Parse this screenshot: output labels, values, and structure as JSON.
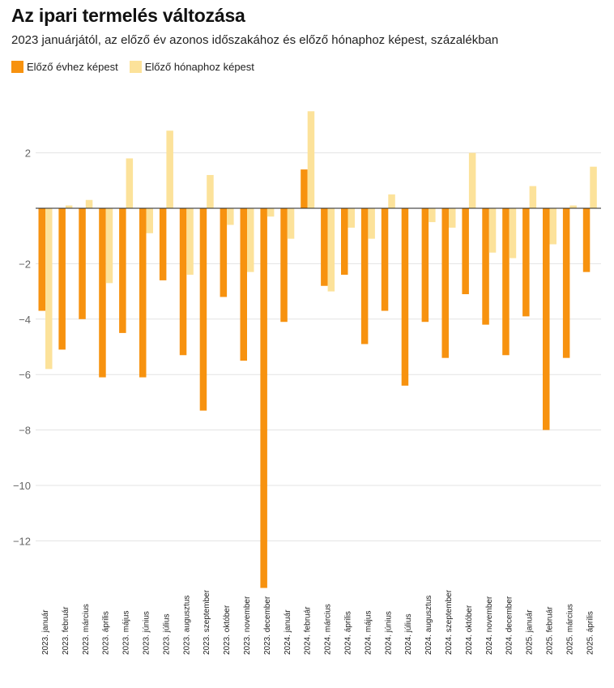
{
  "chart_data": {
    "type": "bar",
    "title": "Az ipari termelés változása",
    "subtitle": "2023 januárjától, az előző év azonos időszakához és előző hónaphoz képest, százalékban",
    "xlabel": "",
    "ylabel": "",
    "ylim": [
      -14,
      3.6
    ],
    "yticks": [
      2,
      0,
      -2,
      -4,
      -6,
      -8,
      -10,
      -12
    ],
    "ytick_labels": [
      "2",
      "",
      "−2",
      "−4",
      "−6",
      "−8",
      "−10",
      "−12"
    ],
    "grid": true,
    "legend_position": "top-left",
    "categories": [
      "2023. január",
      "2023. február",
      "2023. március",
      "2023. április",
      "2023. május",
      "2023. június",
      "2023. július",
      "2023. augusztus",
      "2023. szeptember",
      "2023. október",
      "2023. november",
      "2023. december",
      "2024. január",
      "2024. február",
      "2024. március",
      "2024. április",
      "2024. május",
      "2024. június",
      "2024. július",
      "2024. augusztus",
      "2024. szeptember",
      "2024. október",
      "2024. november",
      "2024. december",
      "2025. január",
      "2025. február",
      "2025. március",
      "2025. április"
    ],
    "series": [
      {
        "name": "Előző évhez képest",
        "color": "#f7920f",
        "values": [
          -3.7,
          -5.1,
          -4.0,
          -6.1,
          -4.5,
          -6.1,
          -2.6,
          -5.3,
          -7.3,
          -3.2,
          -5.5,
          -13.7,
          -4.1,
          1.4,
          -2.8,
          -2.4,
          -4.9,
          -3.7,
          -6.4,
          -4.1,
          -5.4,
          -3.1,
          -4.2,
          -5.3,
          -3.9,
          -8.0,
          -5.4,
          -2.3
        ]
      },
      {
        "name": "Előző hónaphoz képest",
        "color": "#fce29a",
        "values": [
          -5.8,
          0.1,
          0.3,
          -2.7,
          1.8,
          -0.9,
          2.8,
          -2.4,
          1.2,
          -0.6,
          -2.3,
          -0.3,
          -1.1,
          3.5,
          -3.0,
          -0.7,
          -1.1,
          0.5,
          0.0,
          -0.5,
          -0.7,
          2.0,
          -1.6,
          -1.8,
          0.8,
          -1.3,
          0.1,
          1.5
        ]
      }
    ]
  }
}
